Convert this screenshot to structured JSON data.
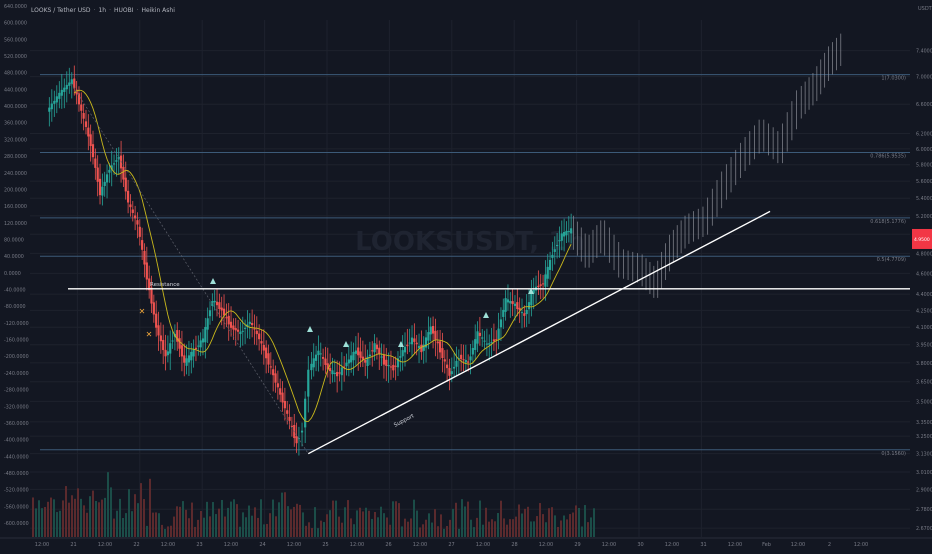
{
  "header": {
    "symbol": "LOOKS / Tether USD",
    "interval": "1h",
    "exchange": "HUOBI",
    "chart_style": "Heikin Ashi",
    "currency": "USDT"
  },
  "colors": {
    "background": "#131722",
    "grid": "#1e222d",
    "up": "#26a69a",
    "down": "#ef5350",
    "projection": "#9598a1",
    "ma_line": "#c9b81c",
    "trend_line": "#ffffff",
    "fib_line": "#3c5a78",
    "label": "#787b86",
    "price_tag": "#f23645",
    "volume_up": "#1b4d48",
    "volume_down": "#5b2a2d"
  },
  "watermark": "LOOKSUSDT, 1h",
  "chart_data": {
    "type": "candlestick",
    "left_axis": {
      "ticks": [
        "640.0000",
        "600.0000",
        "560.0000",
        "520.0000",
        "480.0000",
        "440.0000",
        "400.0000",
        "360.0000",
        "320.0000",
        "280.0000",
        "240.0000",
        "200.0000",
        "160.0000",
        "120.0000",
        "80.0000",
        "40.0000",
        "0.0000",
        "-40.0000",
        "-80.0000",
        "-120.0000",
        "-160.0000",
        "-200.0000",
        "-240.0000",
        "-280.0000",
        "-320.0000",
        "-360.0000",
        "-400.0000",
        "-440.0000",
        "-480.0000",
        "-520.0000",
        "-560.0000",
        "-600.0000"
      ]
    },
    "right_axis": {
      "scale": "log",
      "range": [
        2.62,
        7.9
      ],
      "ticks": [
        7.4,
        7.0,
        6.6,
        6.2,
        6.0,
        5.8,
        5.6,
        5.4,
        5.2,
        5.0,
        4.8,
        4.6,
        4.4,
        4.25,
        4.1,
        3.95,
        3.8,
        3.65,
        3.5,
        3.35,
        3.25,
        3.13,
        3.01,
        2.9,
        2.78,
        2.67
      ],
      "tick_labels": [
        "7.4000",
        "7.0000",
        "6.6000",
        "6.2000",
        "6.0000",
        "5.8000",
        "5.6000",
        "5.4000",
        "5.2000",
        "5.0000",
        "4.8000",
        "4.6000",
        "4.4000",
        "4.2500",
        "4.1000",
        "3.9500",
        "3.8000",
        "3.6500",
        "3.5000",
        "3.3500",
        "3.2500",
        "3.1300",
        "3.0100",
        "2.9000",
        "2.7800",
        "2.6700"
      ],
      "current_price": 4.95
    },
    "x_axis": {
      "tick_labels": [
        "12:00",
        "21",
        "12:00",
        "22",
        "12:00",
        "23",
        "12:00",
        "24",
        "12:00",
        "25",
        "12:00",
        "26",
        "12:00",
        "27",
        "12:00",
        "28",
        "12:00",
        "29",
        "12:00",
        "30",
        "12:00",
        "31",
        "12:00",
        "Feb",
        "12:00",
        "2",
        "12:00"
      ],
      "day_numbers": [
        21,
        22,
        23,
        24,
        25,
        26,
        27,
        28,
        29,
        30,
        31
      ]
    },
    "annotations": {
      "resistance_label": "Resistance",
      "resistance_level": 4.45,
      "support_label": "Support",
      "support_line": {
        "from": {
          "day": 24.7,
          "price": 3.13
        },
        "to": {
          "day": 32.1,
          "price": 5.25
        }
      },
      "fib_levels": [
        {
          "label": "1(7.0300)",
          "value": 7.03
        },
        {
          "label": "0.786(5.9535)",
          "value": 5.9535
        },
        {
          "label": "0.618(5.1776)",
          "value": 5.1776
        },
        {
          "label": "0.5(4.7709)",
          "value": 4.7709
        },
        {
          "label": "0(3.1560)",
          "value": 3.156
        }
      ]
    },
    "ohlc_anchors": [
      {
        "day": 20.55,
        "price": 6.5
      },
      {
        "day": 20.75,
        "price": 6.75
      },
      {
        "day": 20.95,
        "price": 6.95
      },
      {
        "day": 21.1,
        "price": 6.5
      },
      {
        "day": 21.25,
        "price": 6.05
      },
      {
        "day": 21.4,
        "price": 5.45
      },
      {
        "day": 21.55,
        "price": 5.75
      },
      {
        "day": 21.7,
        "price": 5.9
      },
      {
        "day": 21.85,
        "price": 5.35
      },
      {
        "day": 22.0,
        "price": 5.1
      },
      {
        "day": 22.15,
        "price": 4.55
      },
      {
        "day": 22.3,
        "price": 4.1
      },
      {
        "day": 22.45,
        "price": 3.85
      },
      {
        "day": 22.6,
        "price": 4.05
      },
      {
        "day": 22.75,
        "price": 3.8
      },
      {
        "day": 22.9,
        "price": 3.9
      },
      {
        "day": 23.05,
        "price": 4.0
      },
      {
        "day": 23.2,
        "price": 4.35
      },
      {
        "day": 23.35,
        "price": 4.25
      },
      {
        "day": 23.5,
        "price": 4.1
      },
      {
        "day": 23.65,
        "price": 4.05
      },
      {
        "day": 23.8,
        "price": 4.15
      },
      {
        "day": 23.95,
        "price": 4.0
      },
      {
        "day": 24.1,
        "price": 3.8
      },
      {
        "day": 24.25,
        "price": 3.6
      },
      {
        "day": 24.4,
        "price": 3.4
      },
      {
        "day": 24.55,
        "price": 3.2
      },
      {
        "day": 24.65,
        "price": 3.3
      },
      {
        "day": 24.75,
        "price": 3.75
      },
      {
        "day": 24.9,
        "price": 3.9
      },
      {
        "day": 25.05,
        "price": 3.75
      },
      {
        "day": 25.2,
        "price": 3.7
      },
      {
        "day": 25.35,
        "price": 3.8
      },
      {
        "day": 25.5,
        "price": 3.9
      },
      {
        "day": 25.65,
        "price": 3.8
      },
      {
        "day": 25.8,
        "price": 3.95
      },
      {
        "day": 25.95,
        "price": 3.8
      },
      {
        "day": 26.1,
        "price": 3.75
      },
      {
        "day": 26.25,
        "price": 3.9
      },
      {
        "day": 26.4,
        "price": 4.0
      },
      {
        "day": 26.55,
        "price": 3.9
      },
      {
        "day": 26.7,
        "price": 4.1
      },
      {
        "day": 26.85,
        "price": 3.9
      },
      {
        "day": 27.0,
        "price": 3.7
      },
      {
        "day": 27.15,
        "price": 3.85
      },
      {
        "day": 27.3,
        "price": 3.8
      },
      {
        "day": 27.45,
        "price": 4.05
      },
      {
        "day": 27.6,
        "price": 3.95
      },
      {
        "day": 27.75,
        "price": 4.0
      },
      {
        "day": 27.9,
        "price": 4.35
      },
      {
        "day": 28.05,
        "price": 4.3
      },
      {
        "day": 28.2,
        "price": 4.2
      },
      {
        "day": 28.35,
        "price": 4.45
      },
      {
        "day": 28.5,
        "price": 4.5
      },
      {
        "day": 28.65,
        "price": 4.8
      },
      {
        "day": 28.8,
        "price": 5.0
      },
      {
        "day": 28.95,
        "price": 5.05
      }
    ],
    "projection_anchors": [
      {
        "day": 28.95,
        "price": 5.05
      },
      {
        "day": 29.2,
        "price": 4.8
      },
      {
        "day": 29.45,
        "price": 5.0
      },
      {
        "day": 29.75,
        "price": 4.7
      },
      {
        "day": 30.05,
        "price": 4.65
      },
      {
        "day": 30.3,
        "price": 4.5
      },
      {
        "day": 30.55,
        "price": 4.85
      },
      {
        "day": 30.8,
        "price": 5.05
      },
      {
        "day": 31.1,
        "price": 5.15
      },
      {
        "day": 31.4,
        "price": 5.55
      },
      {
        "day": 31.7,
        "price": 5.9
      },
      {
        "day": 32.0,
        "price": 6.2
      },
      {
        "day": 32.3,
        "price": 6.0
      },
      {
        "day": 32.6,
        "price": 6.6
      },
      {
        "day": 32.85,
        "price": 6.85
      },
      {
        "day": 33.1,
        "price": 7.25
      },
      {
        "day": 33.3,
        "price": 7.45
      }
    ]
  }
}
